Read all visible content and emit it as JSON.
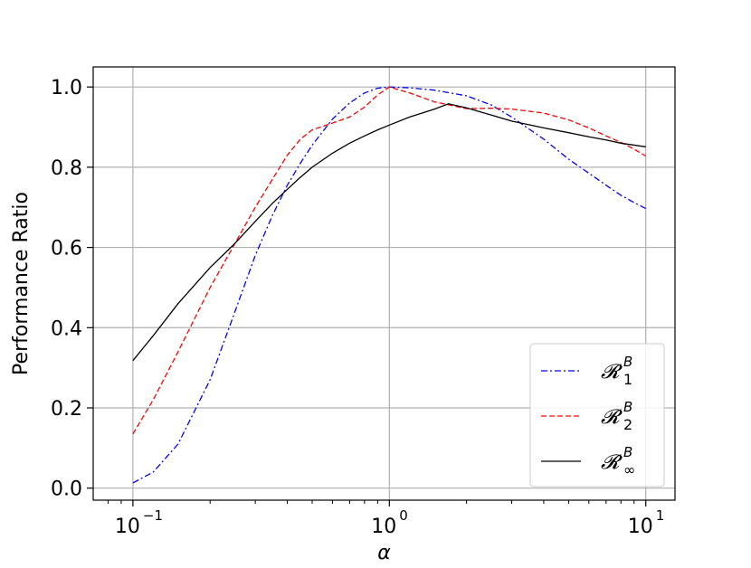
{
  "chart_data": {
    "type": "line",
    "title": "",
    "xlabel": "α",
    "ylabel": "Performance Ratio",
    "xscale": "log",
    "xlim": [
      0.07,
      13
    ],
    "ylim": [
      -0.03,
      1.05
    ],
    "grid": true,
    "legend_position": "lower-right",
    "x_ticks": [
      {
        "value": 0.1,
        "label": "10",
        "exp": "−1"
      },
      {
        "value": 1,
        "label": "10",
        "exp": "0"
      },
      {
        "value": 10,
        "label": "10",
        "exp": "1"
      }
    ],
    "y_ticks": [
      {
        "value": 0.0,
        "label": "0.0"
      },
      {
        "value": 0.2,
        "label": "0.2"
      },
      {
        "value": 0.4,
        "label": "0.4"
      },
      {
        "value": 0.6,
        "label": "0.6"
      },
      {
        "value": 0.8,
        "label": "0.8"
      },
      {
        "value": 1.0,
        "label": "1.0"
      }
    ],
    "series": [
      {
        "name": "R_1^B",
        "legend_base": "𝓡",
        "legend_sub": "1",
        "legend_sup": "B",
        "color": "#0000ff",
        "dash": "dashdot",
        "points": [
          [
            0.1,
            0.013
          ],
          [
            0.12,
            0.04
          ],
          [
            0.15,
            0.11
          ],
          [
            0.2,
            0.27
          ],
          [
            0.25,
            0.44
          ],
          [
            0.3,
            0.58
          ],
          [
            0.35,
            0.68
          ],
          [
            0.4,
            0.755
          ],
          [
            0.45,
            0.81
          ],
          [
            0.5,
            0.855
          ],
          [
            0.6,
            0.92
          ],
          [
            0.7,
            0.96
          ],
          [
            0.8,
            0.985
          ],
          [
            0.9,
            0.997
          ],
          [
            1.0,
            1.0
          ],
          [
            1.2,
            0.998
          ],
          [
            1.5,
            0.992
          ],
          [
            2.0,
            0.978
          ],
          [
            2.5,
            0.955
          ],
          [
            3.0,
            0.925
          ],
          [
            4.0,
            0.87
          ],
          [
            5.0,
            0.82
          ],
          [
            6.0,
            0.785
          ],
          [
            7.0,
            0.755
          ],
          [
            8.0,
            0.73
          ],
          [
            9.0,
            0.712
          ],
          [
            10.0,
            0.697
          ]
        ]
      },
      {
        "name": "R_2^B",
        "legend_base": "𝓡",
        "legend_sub": "2",
        "legend_sup": "B",
        "color": "#ff0000",
        "dash": "dashed",
        "points": [
          [
            0.1,
            0.135
          ],
          [
            0.12,
            0.22
          ],
          [
            0.15,
            0.34
          ],
          [
            0.2,
            0.5
          ],
          [
            0.25,
            0.61
          ],
          [
            0.3,
            0.7
          ],
          [
            0.35,
            0.77
          ],
          [
            0.4,
            0.83
          ],
          [
            0.45,
            0.87
          ],
          [
            0.5,
            0.893
          ],
          [
            0.6,
            0.91
          ],
          [
            0.7,
            0.925
          ],
          [
            0.8,
            0.95
          ],
          [
            0.9,
            0.98
          ],
          [
            1.0,
            1.0
          ],
          [
            1.2,
            0.985
          ],
          [
            1.5,
            0.963
          ],
          [
            2.0,
            0.946
          ],
          [
            2.5,
            0.947
          ],
          [
            3.0,
            0.945
          ],
          [
            4.0,
            0.935
          ],
          [
            5.0,
            0.918
          ],
          [
            6.0,
            0.898
          ],
          [
            7.0,
            0.878
          ],
          [
            8.0,
            0.862
          ],
          [
            9.0,
            0.845
          ],
          [
            10.0,
            0.828
          ]
        ]
      },
      {
        "name": "R_∞^B",
        "legend_base": "𝓡",
        "legend_sub": "∞",
        "legend_sup": "B",
        "color": "#000000",
        "dash": "solid",
        "points": [
          [
            0.1,
            0.318
          ],
          [
            0.12,
            0.38
          ],
          [
            0.15,
            0.46
          ],
          [
            0.2,
            0.55
          ],
          [
            0.25,
            0.61
          ],
          [
            0.3,
            0.665
          ],
          [
            0.35,
            0.71
          ],
          [
            0.4,
            0.745
          ],
          [
            0.45,
            0.775
          ],
          [
            0.5,
            0.8
          ],
          [
            0.6,
            0.835
          ],
          [
            0.7,
            0.86
          ],
          [
            0.8,
            0.878
          ],
          [
            0.9,
            0.893
          ],
          [
            1.0,
            0.905
          ],
          [
            1.2,
            0.925
          ],
          [
            1.5,
            0.945
          ],
          [
            1.7,
            0.958
          ],
          [
            2.0,
            0.948
          ],
          [
            2.5,
            0.93
          ],
          [
            3.0,
            0.915
          ],
          [
            4.0,
            0.898
          ],
          [
            5.0,
            0.886
          ],
          [
            6.0,
            0.876
          ],
          [
            7.0,
            0.868
          ],
          [
            8.0,
            0.86
          ],
          [
            10.0,
            0.851
          ]
        ]
      }
    ]
  }
}
